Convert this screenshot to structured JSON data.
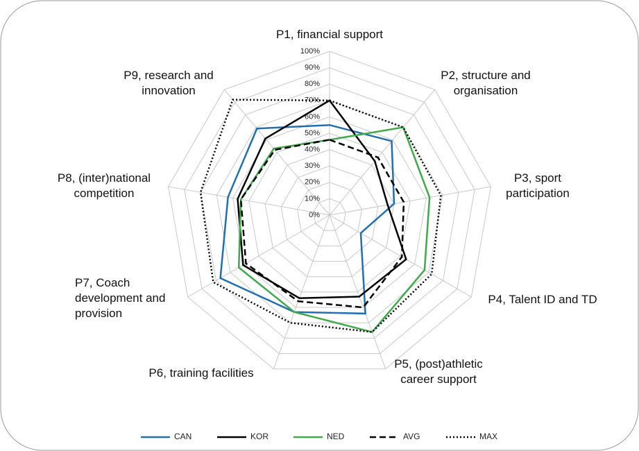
{
  "chart_data": {
    "type": "radar",
    "categories": [
      "P1, financial support",
      "P2, structure and organisation",
      "P3, sport participation",
      "P4, Talent ID and TD",
      "P5, (post)athletic career support",
      "P6, training facilities",
      "P7, Coach development and provision",
      "P8, (inter)national competition",
      "P9, research and innovation"
    ],
    "rlim": [
      0,
      100
    ],
    "rticks": [
      {
        "value": 0,
        "label": "0%"
      },
      {
        "value": 10,
        "label": "10%"
      },
      {
        "value": 20,
        "label": "20%"
      },
      {
        "value": 30,
        "label": "30%"
      },
      {
        "value": 40,
        "label": "40%"
      },
      {
        "value": 50,
        "label": "50%"
      },
      {
        "value": 60,
        "label": "60%"
      },
      {
        "value": 70,
        "label": "70%"
      },
      {
        "value": 80,
        "label": "80%"
      },
      {
        "value": 90,
        "label": "90%"
      },
      {
        "value": 100,
        "label": "100%"
      }
    ],
    "grid": true,
    "legend": "bottom",
    "series": [
      {
        "name": "CAN",
        "color": "#1f6fb2",
        "dash": "solid",
        "values": [
          55,
          59,
          40,
          22,
          64,
          63,
          77,
          63,
          69
        ]
      },
      {
        "name": "KOR",
        "color": "#000000",
        "dash": "solid",
        "values": [
          70,
          43,
          36,
          54,
          53,
          54,
          61,
          57,
          61
        ]
      },
      {
        "name": "NED",
        "color": "#3daa48",
        "dash": "solid",
        "values": [
          46,
          70,
          62,
          67,
          76,
          63,
          64,
          55,
          53
        ]
      },
      {
        "name": "AVG",
        "color": "#000000",
        "dash": "dashed",
        "values": [
          46,
          46,
          46,
          51,
          60,
          56,
          59,
          55,
          52
        ]
      },
      {
        "name": "MAX",
        "color": "#000000",
        "dash": "dotted",
        "values": [
          70,
          70,
          69,
          72,
          76,
          70,
          82,
          80,
          92
        ]
      }
    ]
  }
}
